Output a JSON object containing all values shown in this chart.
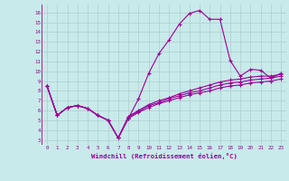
{
  "xlabel": "Windchill (Refroidissement éolien,°C)",
  "bg_color": "#c8eaea",
  "line_color": "#990099",
  "grid_color": "#b0cccc",
  "xlim": [
    -0.5,
    23.5
  ],
  "ylim": [
    2.5,
    16.8
  ],
  "xticks": [
    0,
    1,
    2,
    3,
    4,
    5,
    6,
    7,
    8,
    9,
    10,
    11,
    12,
    13,
    14,
    15,
    16,
    17,
    18,
    19,
    20,
    21,
    22,
    23
  ],
  "yticks": [
    3,
    4,
    5,
    6,
    7,
    8,
    9,
    10,
    11,
    12,
    13,
    14,
    15,
    16
  ],
  "series": [
    {
      "x": [
        0,
        1,
        2,
        3,
        4,
        5,
        6,
        7,
        8,
        9,
        10,
        11,
        12,
        13,
        14,
        15,
        16,
        17,
        18,
        19,
        20,
        21,
        22,
        23
      ],
      "y": [
        8.5,
        5.5,
        6.3,
        6.5,
        6.2,
        5.5,
        5.0,
        3.2,
        5.2,
        7.2,
        9.8,
        11.8,
        13.2,
        14.8,
        15.9,
        16.2,
        15.3,
        15.3,
        11.1,
        9.5,
        10.2,
        10.1,
        9.3,
        9.8
      ]
    },
    {
      "x": [
        0,
        1,
        2,
        3,
        4,
        5,
        6,
        7,
        8,
        9,
        10,
        11,
        12,
        13,
        14,
        15,
        16,
        17,
        18,
        19,
        20,
        21,
        22,
        23
      ],
      "y": [
        8.5,
        5.5,
        6.3,
        6.5,
        6.2,
        5.5,
        5.0,
        3.2,
        5.2,
        5.8,
        6.3,
        6.7,
        7.0,
        7.3,
        7.6,
        7.8,
        8.0,
        8.3,
        8.5,
        8.6,
        8.8,
        8.9,
        9.0,
        9.2
      ]
    },
    {
      "x": [
        0,
        1,
        2,
        3,
        4,
        5,
        6,
        7,
        8,
        9,
        10,
        11,
        12,
        13,
        14,
        15,
        16,
        17,
        18,
        19,
        20,
        21,
        22,
        23
      ],
      "y": [
        8.5,
        5.5,
        6.3,
        6.5,
        6.2,
        5.5,
        5.0,
        3.2,
        5.4,
        6.0,
        6.6,
        7.0,
        7.3,
        7.7,
        8.0,
        8.3,
        8.6,
        8.9,
        9.1,
        9.2,
        9.4,
        9.5,
        9.5,
        9.7
      ]
    },
    {
      "x": [
        0,
        1,
        2,
        3,
        4,
        5,
        6,
        7,
        8,
        9,
        10,
        11,
        12,
        13,
        14,
        15,
        16,
        17,
        18,
        19,
        20,
        21,
        22,
        23
      ],
      "y": [
        8.5,
        5.5,
        6.3,
        6.5,
        6.2,
        5.5,
        5.0,
        3.2,
        5.3,
        5.9,
        6.5,
        6.8,
        7.2,
        7.5,
        7.8,
        8.0,
        8.3,
        8.6,
        8.8,
        8.9,
        9.1,
        9.2,
        9.3,
        9.5
      ]
    }
  ]
}
